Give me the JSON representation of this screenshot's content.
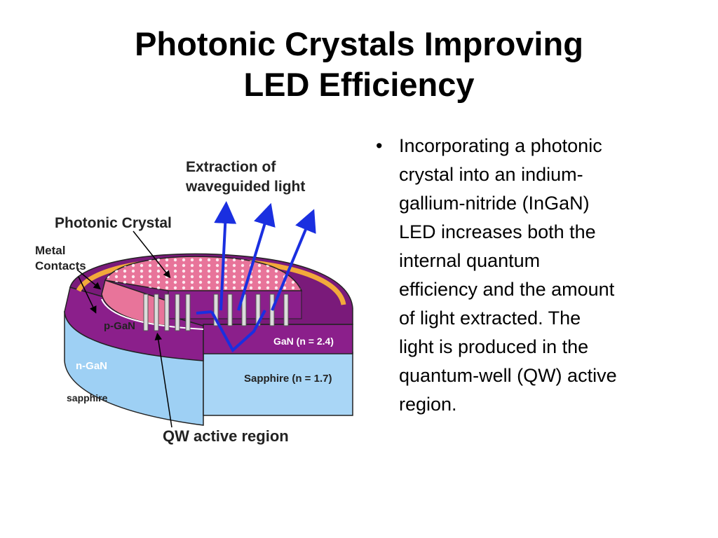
{
  "slide": {
    "title_line1": "Photonic Crystals Improving",
    "title_line2": "LED Efficiency"
  },
  "diagram": {
    "labels": {
      "extraction": [
        "Extraction of",
        "waveguided light"
      ],
      "photonic_crystal": "Photonic Crystal",
      "metal_contacts": [
        "Metal",
        "Contacts"
      ],
      "p_gan": "p-GaN",
      "n_gan": "n-GaN",
      "sapphire": "sapphire",
      "gan_index": "GaN (n = 2.4)",
      "sapphire_index": "Sapphire (n = 1.7)",
      "qw_region": "QW active region"
    },
    "colors": {
      "gan": "#8B1F8B",
      "p_gan": "#E8749A",
      "sapphire": "#9ED0F4",
      "metal_contact": "#F2A93B",
      "arrow": "#1A2FE0"
    }
  },
  "bullets": [
    {
      "mark": "•",
      "lines": [
        "Incorporating a photonic",
        "crystal into an indium-",
        "gallium-nitride (InGaN)",
        "LED increases both the",
        "internal quantum",
        "efficiency and the amount",
        "of light extracted. The",
        "light is produced in the",
        "quantum-well (QW) active",
        "region."
      ]
    }
  ]
}
